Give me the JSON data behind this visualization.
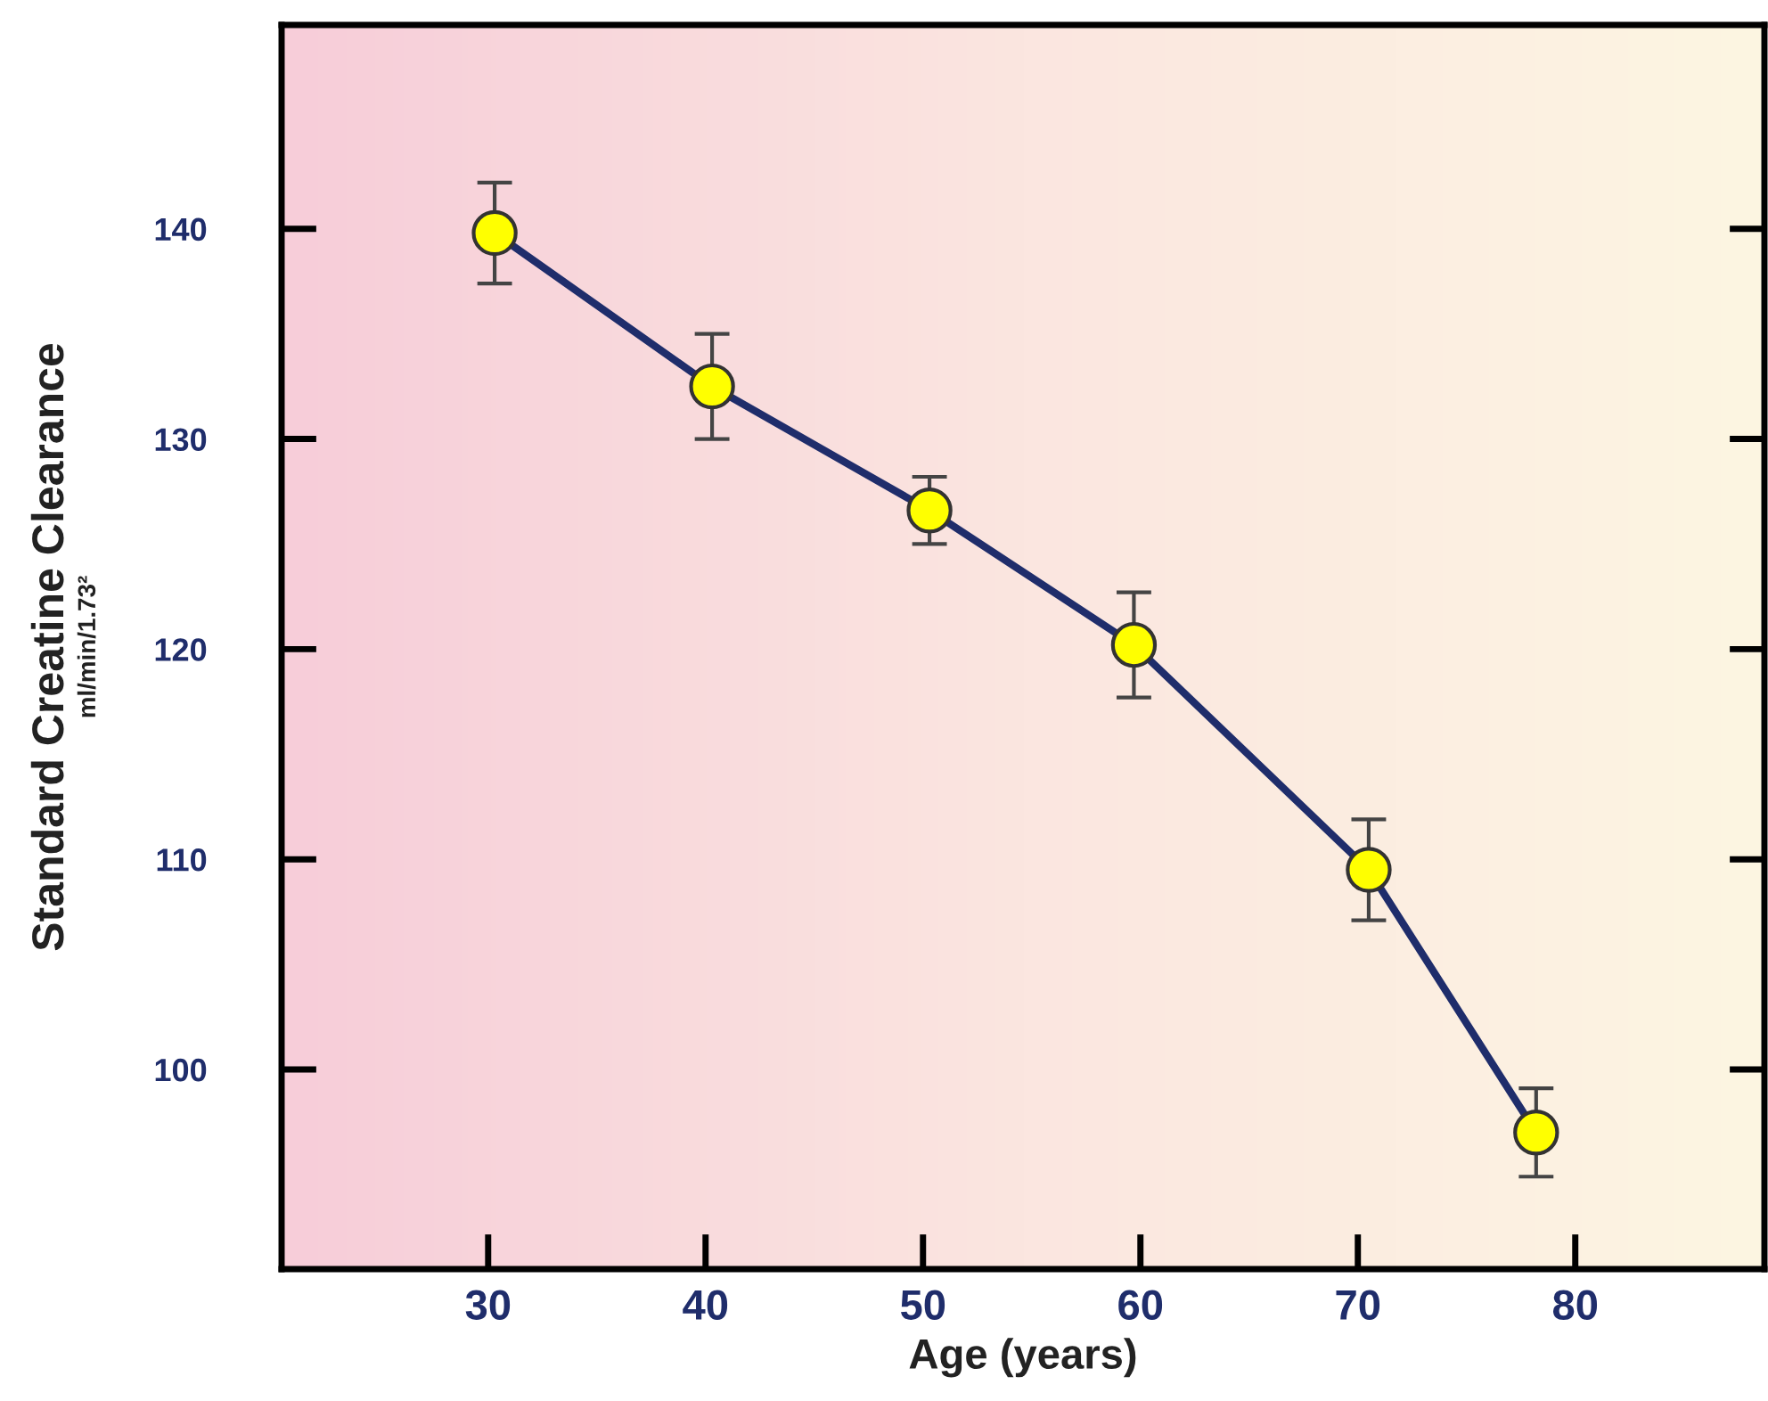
{
  "chart_data": {
    "type": "line",
    "xlabel": "Age (years)",
    "ylabel": "Standard Creatine Clearance\nml/min/1.73²",
    "x": [
      30.3,
      40.3,
      50.3,
      59.7,
      70.5,
      78.2
    ],
    "series": [
      {
        "color": "#1f2d6b",
        "values": [
          139.8,
          132.5,
          126.6,
          120.2,
          109.5,
          97.0
        ],
        "errors": [
          2.4,
          2.5,
          1.6,
          2.5,
          2.4,
          2.1
        ]
      }
    ],
    "xlim": [
      20.5,
      88.7
    ],
    "ylim": [
      90.5,
      149.7
    ],
    "xticks": [
      30,
      40,
      50,
      60,
      70,
      80
    ],
    "yticks": [
      100,
      110,
      120,
      130,
      140
    ],
    "marker": "circle",
    "line_style": "solid",
    "grid": false,
    "legend": false
  }
}
